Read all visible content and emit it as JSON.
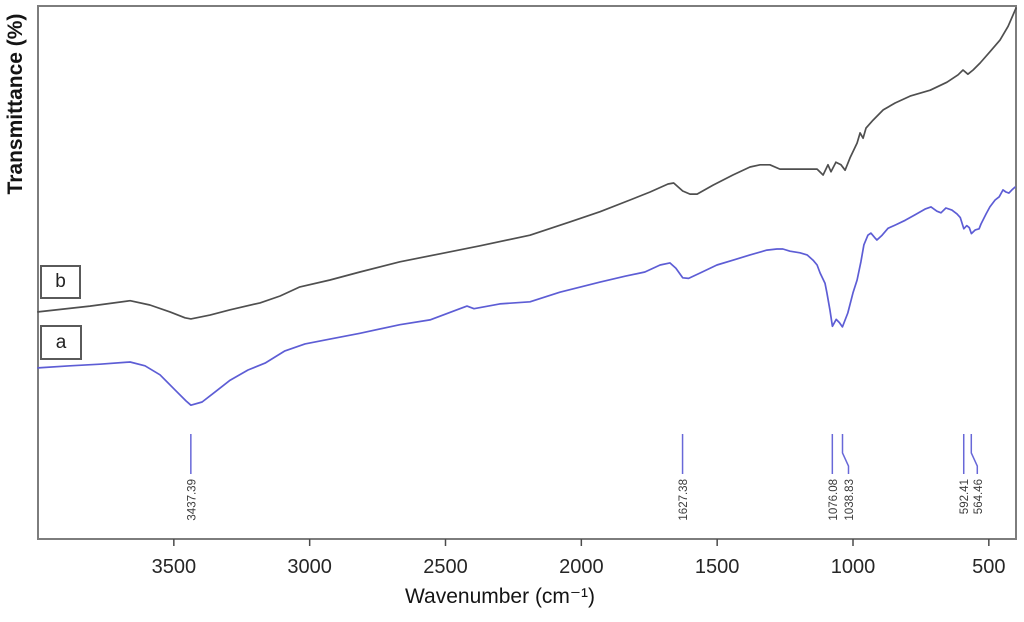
{
  "figure": {
    "y_axis_label": "Transmittance (%)",
    "x_axis_label": "Wavenumber (cm⁻¹)",
    "legend": [
      {
        "label": "b"
      },
      {
        "label": "a"
      }
    ]
  },
  "colors": {
    "curve_a_blue": "#5d5dd5",
    "curve_b_gray": "#4f4f4f",
    "peak_marker_blue": "#6868d8",
    "axis_border_gray": "#7d7d7d",
    "tick_gray": "#4a4a4a",
    "tick_label_color": "#262626",
    "peak_label_color": "#3c3c3c",
    "background": "#ffffff"
  },
  "chart_data": {
    "type": "line",
    "title": "",
    "xlabel": "Wavenumber (cm⁻¹)",
    "ylabel": "Transmittance (%)",
    "grid": false,
    "legend_position": "boxed letters at left inside plot, b above a",
    "x_axis": {
      "left_value": 4000,
      "right_value": 400,
      "reversed": true,
      "tick_values": [
        3500,
        3000,
        2500,
        2000,
        1500,
        1000,
        500
      ]
    },
    "y_axis": {
      "numeric_ticks_visible": false,
      "units": "relative transmittance (% of plot height, no numeric scale shown)"
    },
    "series": [
      {
        "name": "b",
        "color": "#4f4f4f",
        "points": [
          [
            4000,
            42.6
          ],
          [
            3809,
            43.7
          ],
          [
            3661,
            44.7
          ],
          [
            3588,
            43.9
          ],
          [
            3514,
            42.6
          ],
          [
            3459,
            41.5
          ],
          [
            3437,
            41.3
          ],
          [
            3367,
            42.0
          ],
          [
            3293,
            43.0
          ],
          [
            3183,
            44.3
          ],
          [
            3109,
            45.6
          ],
          [
            3036,
            47.3
          ],
          [
            2925,
            48.6
          ],
          [
            2815,
            50.1
          ],
          [
            2668,
            52.0
          ],
          [
            2520,
            53.5
          ],
          [
            2373,
            55.0
          ],
          [
            2189,
            57.0
          ],
          [
            2042,
            59.5
          ],
          [
            1931,
            61.4
          ],
          [
            1821,
            63.6
          ],
          [
            1747,
            65.1
          ],
          [
            1681,
            66.6
          ],
          [
            1660,
            66.8
          ],
          [
            1627,
            65.3
          ],
          [
            1600,
            64.7
          ],
          [
            1574,
            64.7
          ],
          [
            1515,
            66.4
          ],
          [
            1442,
            68.3
          ],
          [
            1379,
            69.8
          ],
          [
            1342,
            70.2
          ],
          [
            1306,
            70.2
          ],
          [
            1269,
            69.4
          ],
          [
            1195,
            69.4
          ],
          [
            1132,
            69.4
          ],
          [
            1110,
            68.3
          ],
          [
            1092,
            70.2
          ],
          [
            1081,
            68.9
          ],
          [
            1063,
            70.7
          ],
          [
            1044,
            70.2
          ],
          [
            1029,
            69.2
          ],
          [
            1011,
            71.5
          ],
          [
            985,
            74.3
          ],
          [
            974,
            76.2
          ],
          [
            963,
            75.2
          ],
          [
            952,
            77.1
          ],
          [
            926,
            78.6
          ],
          [
            889,
            80.5
          ],
          [
            845,
            81.8
          ],
          [
            790,
            83.1
          ],
          [
            716,
            84.2
          ],
          [
            654,
            85.7
          ],
          [
            613,
            87.1
          ],
          [
            595,
            88.0
          ],
          [
            577,
            87.2
          ],
          [
            558,
            88.0
          ],
          [
            532,
            89.3
          ],
          [
            496,
            91.4
          ],
          [
            459,
            93.6
          ],
          [
            429,
            96.2
          ],
          [
            400,
            99.6
          ]
        ]
      },
      {
        "name": "a",
        "color": "#5d5dd5",
        "points": [
          [
            4000,
            32.1
          ],
          [
            3882,
            32.5
          ],
          [
            3772,
            32.8
          ],
          [
            3661,
            33.2
          ],
          [
            3606,
            32.5
          ],
          [
            3551,
            30.8
          ],
          [
            3496,
            28.0
          ],
          [
            3455,
            25.9
          ],
          [
            3437,
            25.1
          ],
          [
            3396,
            25.7
          ],
          [
            3348,
            27.6
          ],
          [
            3293,
            29.8
          ],
          [
            3227,
            31.7
          ],
          [
            3164,
            33.0
          ],
          [
            3091,
            35.3
          ],
          [
            3017,
            36.6
          ],
          [
            2925,
            37.5
          ],
          [
            2815,
            38.6
          ],
          [
            2668,
            40.2
          ],
          [
            2557,
            41.1
          ],
          [
            2447,
            43.2
          ],
          [
            2421,
            43.7
          ],
          [
            2395,
            43.2
          ],
          [
            2300,
            44.1
          ],
          [
            2189,
            44.5
          ],
          [
            2079,
            46.3
          ],
          [
            1931,
            48.2
          ],
          [
            1839,
            49.3
          ],
          [
            1766,
            50.1
          ],
          [
            1710,
            51.4
          ],
          [
            1674,
            51.8
          ],
          [
            1652,
            50.8
          ],
          [
            1627,
            49.0
          ],
          [
            1605,
            48.9
          ],
          [
            1563,
            49.9
          ],
          [
            1501,
            51.4
          ],
          [
            1442,
            52.3
          ],
          [
            1379,
            53.3
          ],
          [
            1317,
            54.2
          ],
          [
            1280,
            54.4
          ],
          [
            1258,
            54.4
          ],
          [
            1232,
            54.0
          ],
          [
            1195,
            53.7
          ],
          [
            1169,
            53.3
          ],
          [
            1147,
            52.3
          ],
          [
            1132,
            51.4
          ],
          [
            1121,
            49.9
          ],
          [
            1103,
            48.0
          ],
          [
            1096,
            46.2
          ],
          [
            1085,
            43.0
          ],
          [
            1076,
            39.9
          ],
          [
            1062,
            41.2
          ],
          [
            1050,
            40.6
          ],
          [
            1039,
            39.8
          ],
          [
            1019,
            42.4
          ],
          [
            1000,
            46.2
          ],
          [
            985,
            48.6
          ],
          [
            971,
            52.0
          ],
          [
            960,
            55.2
          ],
          [
            945,
            57.0
          ],
          [
            934,
            57.4
          ],
          [
            919,
            56.5
          ],
          [
            912,
            56.1
          ],
          [
            893,
            57.0
          ],
          [
            871,
            58.3
          ],
          [
            845,
            58.9
          ],
          [
            808,
            59.8
          ],
          [
            772,
            60.8
          ],
          [
            735,
            61.9
          ],
          [
            713,
            62.3
          ],
          [
            691,
            61.5
          ],
          [
            676,
            61.2
          ],
          [
            658,
            62.1
          ],
          [
            636,
            61.7
          ],
          [
            617,
            61.0
          ],
          [
            605,
            60.3
          ],
          [
            592,
            58.2
          ],
          [
            581,
            58.8
          ],
          [
            572,
            58.4
          ],
          [
            564,
            57.3
          ],
          [
            550,
            58.0
          ],
          [
            536,
            58.2
          ],
          [
            529,
            59.1
          ],
          [
            510,
            61.0
          ],
          [
            496,
            62.3
          ],
          [
            477,
            63.6
          ],
          [
            462,
            64.2
          ],
          [
            448,
            65.5
          ],
          [
            437,
            65.1
          ],
          [
            426,
            64.9
          ],
          [
            415,
            65.5
          ],
          [
            404,
            66.0
          ]
        ]
      }
    ],
    "peak_annotations": [
      {
        "label": "3437.39",
        "wavenumber": 3437.39
      },
      {
        "label": "1627.38",
        "wavenumber": 1627.38
      },
      {
        "label": "1076.08",
        "wavenumber": 1076.08
      },
      {
        "label": "1038.83",
        "wavenumber": 1038.83
      },
      {
        "label": "592.41",
        "wavenumber": 592.41
      },
      {
        "label": "564.46",
        "wavenumber": 564.46
      }
    ]
  }
}
